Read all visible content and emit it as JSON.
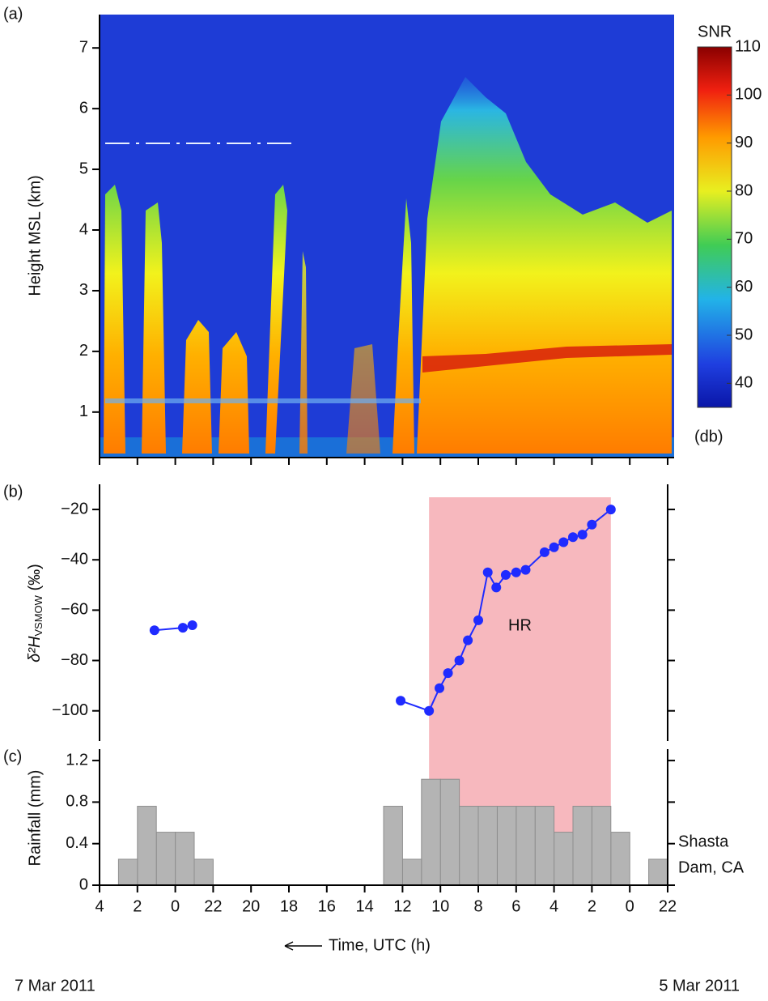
{
  "chart_data": [
    {
      "type": "radar_image",
      "panel_label": "(a)",
      "ylabel": "Height MSL (km)",
      "xlim": [
        52,
        22
      ],
      "ylim": [
        0.25,
        7.55
      ],
      "yticks": [
        1,
        2,
        3,
        4,
        5,
        6,
        7
      ],
      "colorbar": {
        "label": "SNR",
        "unit": "(db)",
        "lim": [
          35,
          110
        ],
        "ticks": [
          40,
          50,
          60,
          70,
          80,
          90,
          100,
          110
        ]
      }
    },
    {
      "type": "line",
      "panel_label": "(b)",
      "ylabel": {
        "main": "δ²H",
        "sub": "VSMOW",
        "unit": " (‰)"
      },
      "xlim": [
        52,
        22
      ],
      "ylim": [
        -112,
        -10
      ],
      "yticks": [
        {
          "value": -20,
          "label": "−20"
        },
        {
          "value": -40,
          "label": "−40"
        },
        {
          "value": -60,
          "label": "−60"
        },
        {
          "value": -80,
          "label": "−80"
        },
        {
          "value": -100,
          "label": "−100"
        }
      ],
      "x": [
        49.1,
        47.6,
        47.1,
        null,
        36.1,
        34.6,
        34.05,
        33.6,
        33.0,
        32.55,
        32.0,
        31.5,
        31.05,
        30.55,
        30.0,
        29.5,
        28.5,
        28.0,
        27.5,
        27.0,
        26.5,
        26.0,
        25.0
      ],
      "values": [
        -68,
        -67,
        -66,
        null,
        -96,
        -100,
        -91,
        -85,
        -80,
        -72,
        -64,
        -45,
        -51,
        -46,
        -45,
        -44,
        -37,
        -35,
        -33,
        -31,
        -30,
        -26,
        -20
      ],
      "color": "#1f2bff",
      "shaded_region": {
        "label": "HR",
        "x": [
          34.6,
          25.0
        ],
        "color": "#f7b8be"
      }
    },
    {
      "type": "histogram",
      "panel_label": "(c)",
      "ylabel": "Rainfall (mm)",
      "station": [
        "Shasta",
        "Dam, CA"
      ],
      "xlabel": "Time, UTC (h)",
      "date_left": "7 Mar 2011",
      "date_right": "5 Mar 2011",
      "xlim": [
        52,
        22
      ],
      "ylim": [
        0,
        1.31
      ],
      "yticks": [
        0,
        0.4,
        0.8,
        1.2
      ],
      "xticks": [
        {
          "value": 52,
          "label": "4"
        },
        {
          "value": 50,
          "label": "2"
        },
        {
          "value": 48,
          "label": "0"
        },
        {
          "value": 46,
          "label": "22"
        },
        {
          "value": 44,
          "label": "20"
        },
        {
          "value": 42,
          "label": "18"
        },
        {
          "value": 40,
          "label": "16"
        },
        {
          "value": 38,
          "label": "14"
        },
        {
          "value": 36,
          "label": "12"
        },
        {
          "value": 34,
          "label": "10"
        },
        {
          "value": 32,
          "label": "8"
        },
        {
          "value": 30,
          "label": "6"
        },
        {
          "value": 28,
          "label": "4"
        },
        {
          "value": 26,
          "label": "2"
        },
        {
          "value": 24,
          "label": "0"
        },
        {
          "value": 22,
          "label": "22"
        }
      ],
      "bins": [
        22,
        23,
        24,
        25,
        26,
        27,
        28,
        29,
        30,
        31,
        32,
        33,
        34,
        35,
        36,
        37,
        38,
        39,
        40,
        41,
        42,
        43,
        44,
        45,
        46,
        47,
        48,
        49,
        50,
        51,
        52
      ],
      "values": [
        0.25,
        0,
        0.51,
        0.76,
        0.76,
        0.51,
        0.76,
        0.76,
        0.76,
        0.76,
        0.76,
        1.02,
        1.02,
        0.25,
        0.76,
        0,
        0,
        0,
        0,
        0,
        0,
        0,
        0,
        0,
        0.25,
        0.51,
        0.51,
        0.76,
        0.25,
        0
      ],
      "color": "#b4b4b4"
    }
  ]
}
